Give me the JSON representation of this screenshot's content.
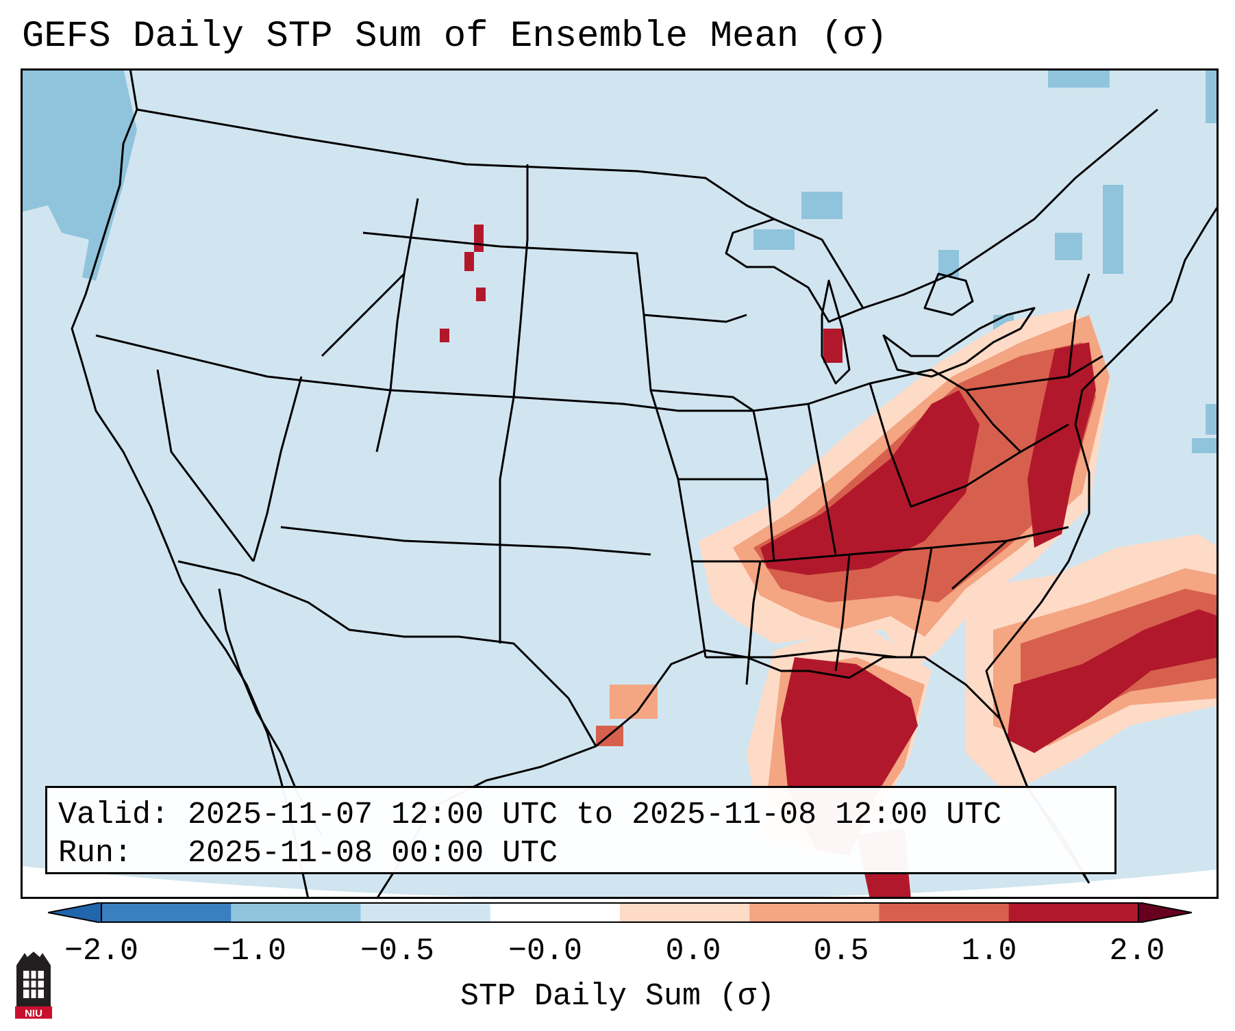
{
  "title": "GEFS Daily STP Sum of Ensemble Mean (σ)",
  "valid_line": "Valid: 2025-11-07 12:00 UTC to 2025-11-08 12:00 UTC",
  "run_line": "Run:   2025-11-08 00:00 UTC",
  "colorbar": {
    "label": "STP Daily Sum (σ)",
    "ticks": [
      "−2.0",
      "−1.0",
      "−0.5",
      "−0.0",
      "0.0",
      "0.5",
      "1.0",
      "2.0"
    ],
    "colors": [
      "#3a7fbf",
      "#90c4dd",
      "#d1e5f0",
      "#ffffff",
      "#fddbc7",
      "#f4a582",
      "#d6604d",
      "#b2182b"
    ]
  },
  "map": {
    "background_color": "#d1e5f0",
    "land_line_color": "#000000",
    "highlight_regions": [
      {
        "name": "Ohio / Tennessee Valley",
        "level": "strong"
      },
      {
        "name": "Mid-Atlantic coast",
        "level": "strong"
      },
      {
        "name": "Gulf of Mexico",
        "level": "strong"
      },
      {
        "name": "Western Atlantic",
        "level": "strong"
      },
      {
        "name": "Pacific Northwest offshore",
        "level": "negative"
      }
    ]
  },
  "logo": {
    "name": "NIU"
  }
}
